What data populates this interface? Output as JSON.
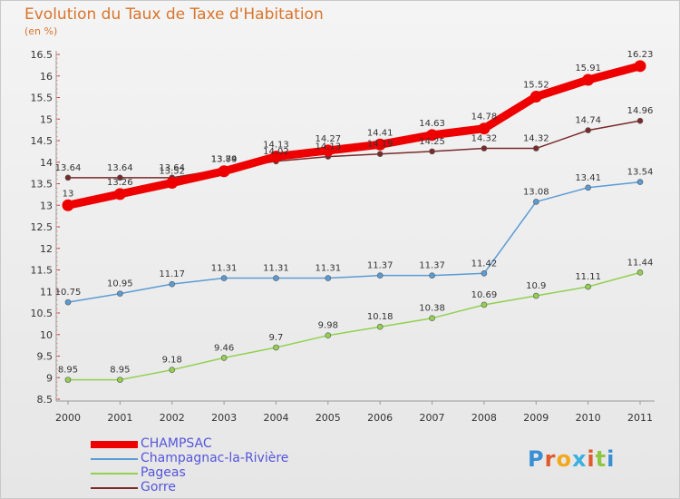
{
  "title": "Evolution du Taux de Taxe d'Habitation",
  "subtitle": "(en %)",
  "brand": [
    "P",
    "r",
    "o",
    "x",
    "i",
    "t",
    "i"
  ],
  "brand_colors": [
    "#3a8fd4",
    "#e05a2b",
    "#f2a81d",
    "#3ab0e0",
    "#e05a2b",
    "#8dc63f",
    "#3a8fd4"
  ],
  "chart_data": {
    "type": "line",
    "title": "Evolution du Taux de Taxe d'Habitation",
    "ylabel": "(en %)",
    "x": [
      "2000",
      "2001",
      "2002",
      "2003",
      "2004",
      "2005",
      "2006",
      "2007",
      "2008",
      "2009",
      "2010",
      "2011"
    ],
    "ylim": [
      8.5,
      16.5
    ],
    "yticks": [
      "8.5",
      "9",
      "9.5",
      "10",
      "10.5",
      "11",
      "11.5",
      "12",
      "12.5",
      "13",
      "13.5",
      "14",
      "14.5",
      "15",
      "15.5",
      "16",
      "16.5"
    ],
    "grid": false,
    "legend": "bottom-left",
    "series": [
      {
        "name": "CHAMPSAC",
        "color": "#ee0000",
        "values": [
          13,
          13.26,
          13.52,
          13.79,
          14.13,
          14.27,
          14.41,
          14.63,
          14.78,
          15.52,
          15.91,
          16.23
        ],
        "labels": [
          "13",
          "13.26",
          "13.52",
          "13.79",
          "14.13",
          "14.27",
          "14.41",
          "14.63",
          "14.78",
          "15.52",
          "15.91",
          "16.23"
        ]
      },
      {
        "name": "Champagnac-la-Rivière",
        "color": "#5b9bd5",
        "values": [
          10.75,
          10.95,
          11.17,
          11.31,
          11.31,
          11.31,
          11.37,
          11.37,
          11.42,
          13.08,
          13.41,
          13.54
        ],
        "labels": [
          "10.75",
          "10.95",
          "11.17",
          "11.31",
          "11.31",
          "11.31",
          "11.37",
          "11.37",
          "11.42",
          "13.08",
          "13.41",
          "13.54"
        ]
      },
      {
        "name": "Pageas",
        "color": "#92d050",
        "values": [
          8.95,
          8.95,
          9.18,
          9.46,
          9.7,
          9.98,
          10.18,
          10.38,
          10.69,
          10.9,
          11.11,
          11.44
        ],
        "labels": [
          "8.95",
          "8.95",
          "9.18",
          "9.46",
          "9.7",
          "9.98",
          "10.18",
          "10.38",
          "10.69",
          "10.9",
          "11.11",
          "11.44"
        ]
      },
      {
        "name": "Gorre",
        "color": "#7a2a2a",
        "values": [
          13.64,
          13.64,
          13.64,
          13.84,
          14.02,
          14.13,
          14.19,
          14.25,
          14.32,
          14.32,
          14.74,
          14.96
        ],
        "labels": [
          "13.64",
          "13.64",
          "13.64",
          "13.84",
          "14.02",
          "14.13",
          "14.19",
          "14.25",
          "14.32",
          "14.32",
          "14.74",
          "14.96"
        ]
      }
    ]
  }
}
